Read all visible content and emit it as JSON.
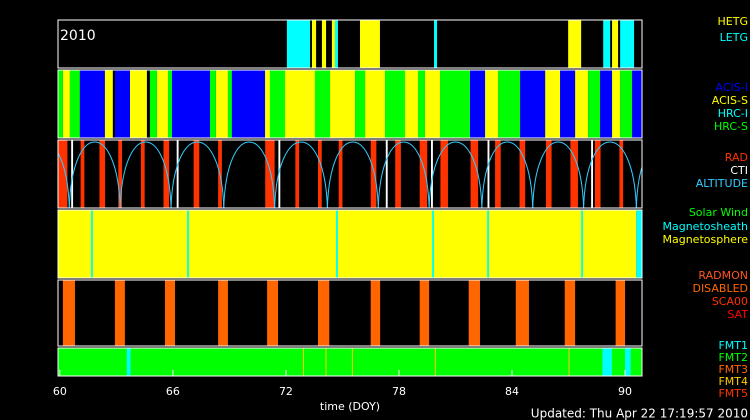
{
  "chart_data": {
    "type": "timeline",
    "xlabel": "time (DOY)",
    "footer": "Updated: Thu Apr 22 17:19:57 2010",
    "xlim": [
      59.9,
      90.9
    ],
    "xticks": [
      60,
      66,
      72,
      78,
      84,
      90
    ],
    "panels": [
      {
        "label": "2010",
        "legend": [
          {
            "name": "HETG",
            "color": "#ffff00",
            "intervals": [
              [
                73.38,
                73.6
              ],
              [
                73.91,
                74.13
              ],
              [
                74.44,
                74.6
              ],
              [
                75.93,
                76.99
              ],
              [
                86.98,
                87.67
              ],
              [
                89.31,
                89.63
              ]
            ]
          },
          {
            "name": "LETG",
            "color": "#00ffff",
            "intervals": [
              [
                72.05,
                73.28
              ],
              [
                74.6,
                74.76
              ],
              [
                79.86,
                80.02
              ],
              [
                88.84,
                89.21
              ],
              [
                89.74,
                90.48
              ]
            ]
          }
        ]
      },
      {
        "legend": [
          {
            "name": "ACIS-I",
            "color": "#0000ff",
            "intervals": [
              [
                61.06,
                62.39
              ],
              [
                62.92,
                63.72
              ],
              [
                65.95,
                67.97
              ],
              [
                69.13,
                70.89
              ],
              [
                81.77,
                82.57
              ],
              [
                84.43,
                85.76
              ],
              [
                86.55,
                87.35
              ],
              [
                88.68,
                89.31
              ],
              [
                90.38,
                90.9
              ]
            ]
          },
          {
            "name": "ACIS-S",
            "color": "#ffff00",
            "intervals": [
              [
                60.16,
                60.53
              ],
              [
                62.39,
                62.81
              ],
              [
                63.72,
                64.62
              ],
              [
                65.15,
                65.74
              ],
              [
                68.28,
                68.92
              ],
              [
                70.89,
                71.15
              ],
              [
                71.95,
                73.54
              ],
              [
                74.34,
                75.67
              ],
              [
                76.2,
                77.26
              ],
              [
                78.32,
                79.01
              ],
              [
                79.38,
                80.18
              ],
              [
                82.57,
                83.26
              ],
              [
                85.76,
                86.55
              ],
              [
                87.35,
                88.04
              ],
              [
                89.31,
                89.74
              ]
            ]
          },
          {
            "name": "HRC-I",
            "color": "#00ffff",
            "intervals": []
          },
          {
            "name": "HRC-S",
            "color": "#00ff00",
            "intervals": [
              [
                59.9,
                60.16
              ],
              [
                60.53,
                61.06
              ],
              [
                64.78,
                65.15
              ],
              [
                65.74,
                65.95
              ],
              [
                67.97,
                68.28
              ],
              [
                68.92,
                69.13
              ],
              [
                71.15,
                71.95
              ],
              [
                73.54,
                74.34
              ],
              [
                75.67,
                76.2
              ],
              [
                77.26,
                78.32
              ],
              [
                79.01,
                79.38
              ],
              [
                80.18,
                81.77
              ],
              [
                83.26,
                84.43
              ],
              [
                88.04,
                88.68
              ],
              [
                89.74,
                90.38
              ]
            ]
          }
        ]
      },
      {
        "legend": [
          {
            "name": "RAD",
            "color": "#ff3300",
            "intervals": [
              [
                59.9,
                60.4
              ],
              [
                61.1,
                61.3
              ],
              [
                62.1,
                62.4
              ],
              [
                63.1,
                63.3
              ],
              [
                64.3,
                64.5
              ],
              [
                65.5,
                65.8
              ],
              [
                67.1,
                67.4
              ],
              [
                68.4,
                68.6
              ],
              [
                70.9,
                71.4
              ],
              [
                72.5,
                72.7
              ],
              [
                73.7,
                73.9
              ],
              [
                74.8,
                75.0
              ],
              [
                76.5,
                76.8
              ],
              [
                77.8,
                78.1
              ],
              [
                79.1,
                79.5
              ],
              [
                80.2,
                80.6
              ],
              [
                81.8,
                82.2
              ],
              [
                83.1,
                83.4
              ],
              [
                84.4,
                84.7
              ],
              [
                85.8,
                86.1
              ],
              [
                87.1,
                87.5
              ],
              [
                88.4,
                88.7
              ],
              [
                89.7,
                89.9
              ]
            ]
          },
          {
            "name": "CTI",
            "color": "#ffffff",
            "intervals": [
              [
                60.6,
                60.7
              ],
              [
                66.2,
                66.3
              ],
              [
                71.6,
                71.7
              ],
              [
                77.3,
                77.4
              ],
              [
                79.7,
                79.8
              ],
              [
                82.7,
                82.8
              ],
              [
                88.2,
                88.3
              ]
            ]
          },
          {
            "name": "ALTITUDE",
            "color": "#33ccff",
            "perigees": [
              60.5,
              63.2,
              65.9,
              68.7,
              71.4,
              74.2,
              76.9,
              79.6,
              82.4,
              85.1,
              87.8,
              90.6
            ]
          }
        ]
      },
      {
        "legend": [
          {
            "name": "Solar Wind",
            "color": "#00ff00",
            "intervals": []
          },
          {
            "name": "Magnetosheath",
            "color": "#00ffff",
            "intervals": [
              [
                61.65,
                61.75
              ],
              [
                66.75,
                66.85
              ],
              [
                74.66,
                74.76
              ],
              [
                79.76,
                79.86
              ],
              [
                82.68,
                82.78
              ],
              [
                87.67,
                87.77
              ],
              [
                90.6,
                90.9
              ]
            ]
          },
          {
            "name": "Magnetosphere",
            "color": "#ffff00",
            "intervals": [
              [
                59.9,
                90.6
              ]
            ]
          }
        ]
      },
      {
        "legend": [
          {
            "name": "RADMON",
            "color": "#ff5522",
            "intervals": []
          },
          {
            "name": "DISABLED",
            "color": "#ff6600",
            "intervals": [
              [
                60.16,
                60.8
              ],
              [
                62.92,
                63.45
              ],
              [
                65.58,
                66.11
              ],
              [
                68.4,
                68.92
              ],
              [
                71.0,
                71.58
              ],
              [
                73.7,
                74.3
              ],
              [
                76.5,
                77.0
              ],
              [
                79.1,
                79.6
              ],
              [
                81.7,
                82.3
              ],
              [
                84.2,
                84.9
              ],
              [
                86.8,
                87.35
              ],
              [
                89.5,
                90.0
              ]
            ]
          },
          {
            "name": "SCA00",
            "color": "#ff3300",
            "intervals": []
          },
          {
            "name": "SAT",
            "color": "#ff0000",
            "intervals": []
          }
        ]
      },
      {
        "legend": [
          {
            "name": "FMT1",
            "color": "#00ffff",
            "intervals": [
              [
                63.55,
                63.75
              ],
              [
                88.8,
                89.3
              ],
              [
                90.0,
                90.3
              ]
            ]
          },
          {
            "name": "FMT2",
            "color": "#00ff00",
            "intervals": [
              [
                59.9,
                90.9
              ]
            ]
          },
          {
            "name": "FMT3",
            "color": "#ff6600",
            "intervals": []
          },
          {
            "name": "FMT4",
            "color": "#ffcc00",
            "intervals": [
              [
                72.9,
                72.95
              ],
              [
                74.1,
                74.15
              ],
              [
                75.5,
                75.55
              ],
              [
                79.9,
                79.95
              ],
              [
                87.0,
                87.05
              ]
            ]
          },
          {
            "name": "FMT5",
            "color": "#ff3300",
            "intervals": []
          }
        ]
      }
    ]
  }
}
